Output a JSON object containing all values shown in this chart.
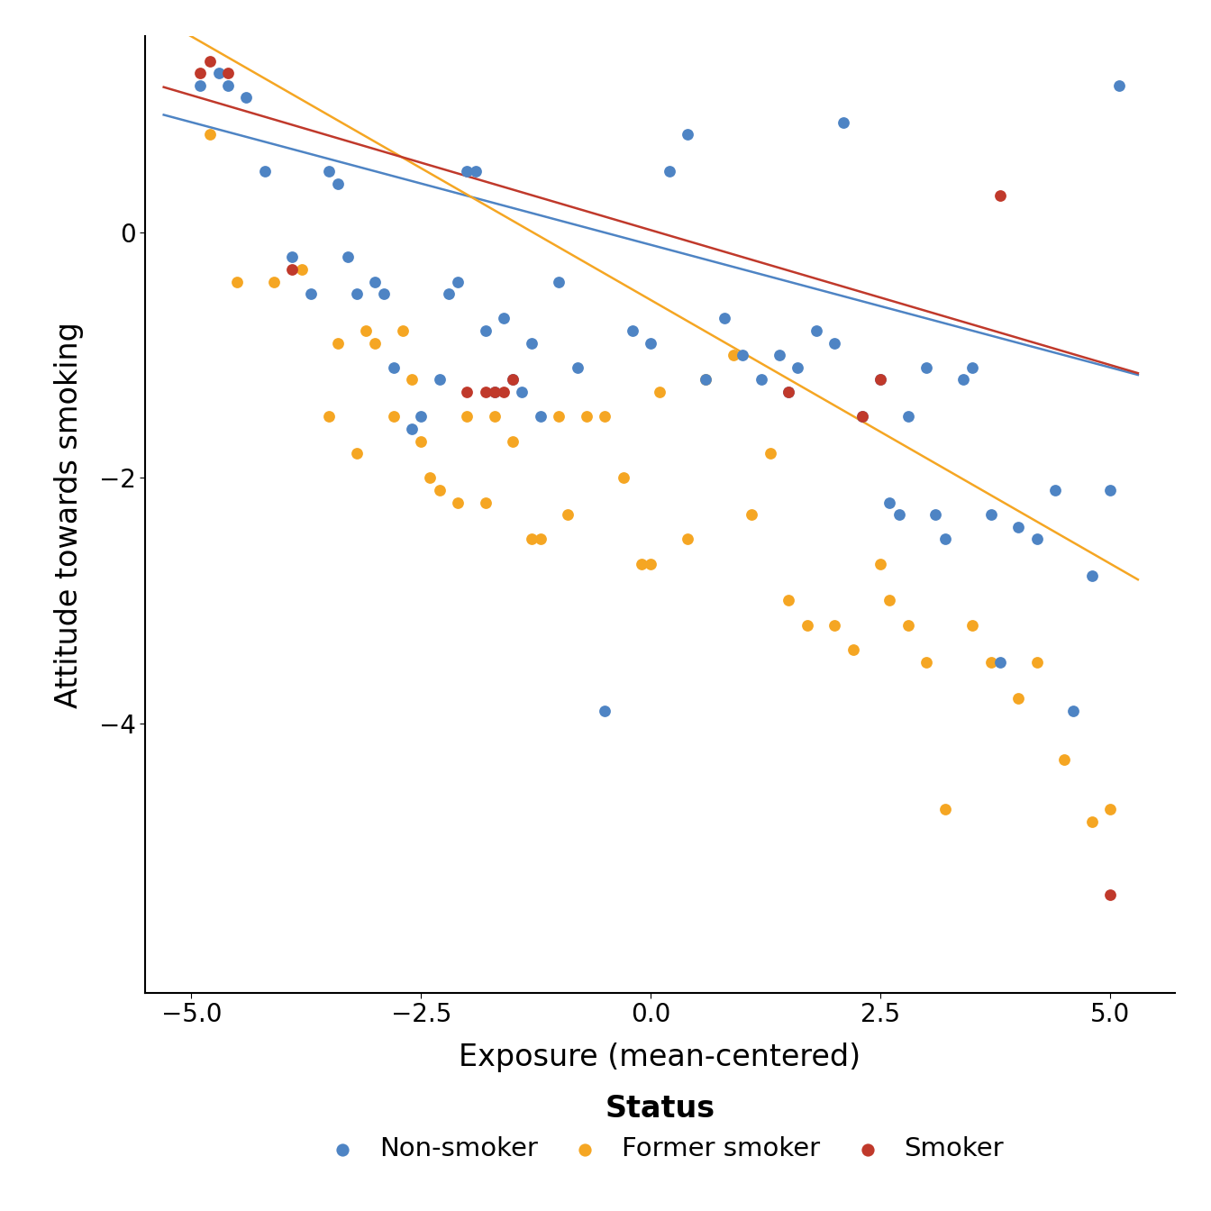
{
  "title": "",
  "xlabel": "Exposure (mean-centered)",
  "ylabel": "Attitude towards smoking",
  "xlim": [
    -5.5,
    5.7
  ],
  "ylim": [
    -6.2,
    1.6
  ],
  "xticks": [
    -5.0,
    -2.5,
    0.0,
    2.5,
    5.0
  ],
  "yticks": [
    0,
    -2,
    -4
  ],
  "colors": {
    "non_smoker": "#4E84C4",
    "former_smoker": "#F5A623",
    "smoker": "#C0392B"
  },
  "legend_title": "Status",
  "legend_labels": [
    "Non-smoker",
    "Former smoker",
    "Smoker"
  ],
  "point_size": 85,
  "line_width": 1.8,
  "non_smoker_line": {
    "intercept": -0.1,
    "slope": -0.2
  },
  "former_smoker_line": {
    "intercept": -0.55,
    "slope": -0.43
  },
  "smoker_line": {
    "intercept": 0.02,
    "slope": -0.22
  },
  "non_smoker_x": [
    -4.9,
    -4.7,
    -4.6,
    -4.4,
    -4.2,
    -3.9,
    -3.7,
    -3.5,
    -3.4,
    -3.3,
    -3.2,
    -3.0,
    -2.9,
    -2.8,
    -2.6,
    -2.5,
    -2.3,
    -2.2,
    -2.1,
    -2.0,
    -1.9,
    -1.8,
    -1.7,
    -1.6,
    -1.5,
    -1.4,
    -1.3,
    -1.2,
    -1.0,
    -0.8,
    -0.5,
    -0.2,
    0.0,
    0.2,
    0.4,
    0.6,
    0.8,
    1.0,
    1.2,
    1.4,
    1.5,
    1.6,
    1.8,
    2.0,
    2.1,
    2.3,
    2.5,
    2.6,
    2.7,
    2.8,
    3.0,
    3.1,
    3.2,
    3.4,
    3.5,
    3.7,
    3.8,
    4.0,
    4.2,
    4.4,
    4.6,
    4.8,
    5.0,
    5.1
  ],
  "non_smoker_y": [
    1.2,
    1.3,
    1.2,
    1.1,
    0.5,
    -0.2,
    -0.5,
    0.5,
    0.4,
    -0.2,
    -0.5,
    -0.4,
    -0.5,
    -1.1,
    -1.6,
    -1.5,
    -1.2,
    -0.5,
    -0.4,
    0.5,
    0.5,
    -0.8,
    -1.3,
    -0.7,
    -1.2,
    -1.3,
    -0.9,
    -1.5,
    -0.4,
    -1.1,
    -3.9,
    -0.8,
    -0.9,
    0.5,
    0.8,
    -1.2,
    -0.7,
    -1.0,
    -1.2,
    -1.0,
    -1.3,
    -1.1,
    -0.8,
    -0.9,
    0.9,
    -1.5,
    -1.2,
    -2.2,
    -2.3,
    -1.5,
    -1.1,
    -2.3,
    -2.5,
    -1.2,
    -1.1,
    -2.3,
    -3.5,
    -2.4,
    -2.5,
    -2.1,
    -3.9,
    -2.8,
    -2.1,
    1.2
  ],
  "former_smoker_x": [
    -4.8,
    -4.5,
    -4.1,
    -3.8,
    -3.5,
    -3.4,
    -3.2,
    -3.1,
    -3.0,
    -2.8,
    -2.7,
    -2.6,
    -2.5,
    -2.4,
    -2.3,
    -2.1,
    -2.0,
    -1.8,
    -1.7,
    -1.5,
    -1.3,
    -1.2,
    -1.0,
    -0.9,
    -0.7,
    -0.5,
    -0.3,
    -0.1,
    0.0,
    0.1,
    0.4,
    0.6,
    0.9,
    1.1,
    1.3,
    1.5,
    1.7,
    2.0,
    2.2,
    2.5,
    2.6,
    2.8,
    3.0,
    3.2,
    3.5,
    3.7,
    4.0,
    4.2,
    4.5,
    4.8,
    5.0
  ],
  "former_smoker_y": [
    0.8,
    -0.4,
    -0.4,
    -0.3,
    -1.5,
    -0.9,
    -1.8,
    -0.8,
    -0.9,
    -1.5,
    -0.8,
    -1.2,
    -1.7,
    -2.0,
    -2.1,
    -2.2,
    -1.5,
    -2.2,
    -1.5,
    -1.7,
    -2.5,
    -2.5,
    -1.5,
    -2.3,
    -1.5,
    -1.5,
    -2.0,
    -2.7,
    -2.7,
    -1.3,
    -2.5,
    -1.2,
    -1.0,
    -2.3,
    -1.8,
    -3.0,
    -3.2,
    -3.2,
    -3.4,
    -2.7,
    -3.0,
    -3.2,
    -3.5,
    -4.7,
    -3.2,
    -3.5,
    -3.8,
    -3.5,
    -4.3,
    -4.8,
    -4.7
  ],
  "smoker_x": [
    -4.9,
    -4.8,
    -4.6,
    -3.9,
    -2.0,
    -1.8,
    -1.7,
    -1.6,
    -1.5,
    1.5,
    2.3,
    2.5,
    3.8,
    5.0
  ],
  "smoker_y": [
    1.3,
    1.4,
    1.3,
    -0.3,
    -1.3,
    -1.3,
    -1.3,
    -1.3,
    -1.2,
    -1.3,
    -1.5,
    -1.2,
    0.3,
    -5.4
  ],
  "background_color": "#ffffff"
}
